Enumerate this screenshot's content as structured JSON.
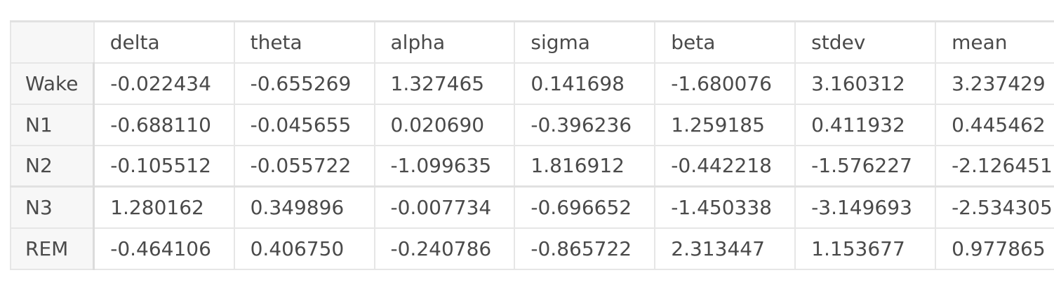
{
  "table": {
    "columns": [
      "delta",
      "theta",
      "alpha",
      "sigma",
      "beta",
      "stdev",
      "mean"
    ],
    "rows": [
      {
        "label": "Wake",
        "cells": [
          "-0.022434",
          "-0.655269",
          "1.327465",
          "0.141698",
          "-1.680076",
          "3.160312",
          "3.237429"
        ]
      },
      {
        "label": "N1",
        "cells": [
          "-0.688110",
          "-0.045655",
          "0.020690",
          "-0.396236",
          "1.259185",
          "0.411932",
          "0.445462"
        ]
      },
      {
        "label": "N2",
        "cells": [
          "-0.105512",
          "-0.055722",
          "-1.099635",
          "1.816912",
          "-0.442218",
          "-1.576227",
          "-2.126451"
        ]
      },
      {
        "label": "N3",
        "cells": [
          "1.280162",
          "0.349896",
          "-0.007734",
          "-0.696652",
          "-1.450338",
          "-3.149693",
          "-2.534305"
        ]
      },
      {
        "label": "REM",
        "cells": [
          "-0.464106",
          "0.406750",
          "-0.240786",
          "-0.865722",
          "2.313447",
          "1.153677",
          "0.977865"
        ]
      }
    ]
  }
}
